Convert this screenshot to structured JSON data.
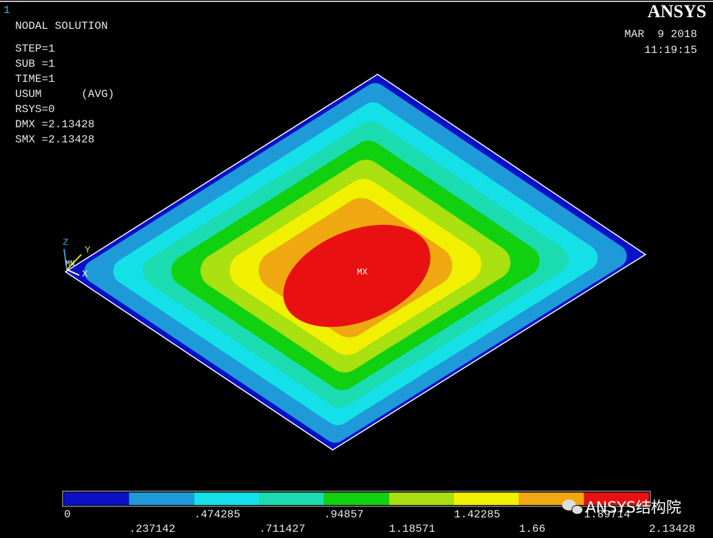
{
  "window_number": "1",
  "info": {
    "title": "NODAL SOLUTION",
    "lines": [
      "STEP=1",
      "SUB =1",
      "TIME=1",
      "USUM      (AVG)",
      "RSYS=0",
      "DMX =2.13428",
      "SMX =2.13428"
    ]
  },
  "logo": "ANSYS",
  "date": "MAR  9 2018",
  "time": "11:19:15",
  "triad": {
    "z": "Z",
    "y": "Y",
    "x": "X",
    "mn": "MN"
  },
  "max_label": "MX",
  "legend": {
    "colors": [
      "#0a10c8",
      "#1e9ad8",
      "#14e0e8",
      "#1adcb0",
      "#10d010",
      "#a8e010",
      "#f0f000",
      "#f0a810",
      "#e81010"
    ],
    "labels": [
      "0",
      ".237142",
      ".474285",
      ".711427",
      ".94857",
      "1.18571",
      "1.42285",
      "1.66",
      "1.89714",
      "2.13428"
    ]
  },
  "watermark": "ANSYS结构院"
}
